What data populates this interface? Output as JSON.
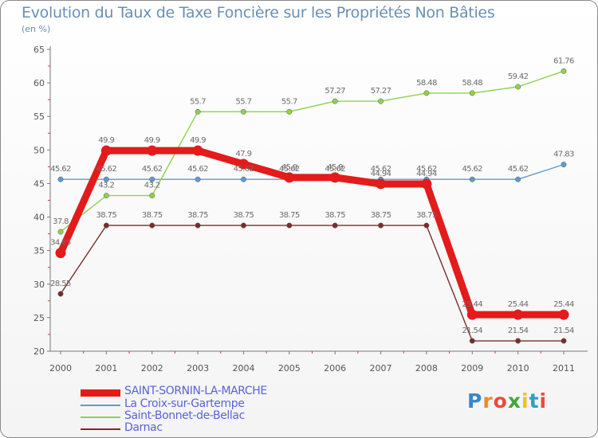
{
  "header": {
    "title": "Evolution du Taux de Taxe Foncière sur les Propriétés Non Bâties",
    "unit": "(en %)"
  },
  "brand": {
    "text": "Proxiti",
    "colors": [
      "#3a87c8",
      "#f08a24",
      "#e94b3c",
      "#3fa83f",
      "#f0c020",
      "#2aa0c8",
      "#e94b3c"
    ]
  },
  "chart_data": {
    "type": "line",
    "title": "Evolution du Taux de Taxe Foncière sur les Propriétés Non Bâties",
    "ylabel": "(en %)",
    "xlabel": "",
    "x": [
      "2000",
      "2001",
      "2002",
      "2003",
      "2004",
      "2005",
      "2006",
      "2007",
      "2008",
      "2009",
      "2010",
      "2011"
    ],
    "ylim": [
      20,
      65
    ],
    "yticks": [
      20,
      25,
      30,
      35,
      40,
      45,
      50,
      55,
      60,
      65
    ],
    "grid": false,
    "legend_position": "bottom-left",
    "series": [
      {
        "name": "SAINT-SORNIN-LA-MARCHE",
        "color": "#e31b1b",
        "values": [
          34.65,
          49.9,
          49.9,
          49.9,
          47.9,
          45.9,
          45.9,
          44.94,
          44.94,
          25.44,
          25.44,
          25.44
        ],
        "labels": [
          "34.65",
          "49.9",
          "49.9",
          "49.9",
          "47.9",
          "45.9",
          "45.9",
          "44.94",
          "44.94",
          "25.44",
          "25.44",
          "25.44"
        ]
      },
      {
        "name": "La Croix-sur-Gartempe",
        "color": "#5b9bd5",
        "values": [
          45.62,
          45.62,
          45.62,
          45.62,
          45.62,
          45.62,
          45.62,
          45.62,
          45.62,
          45.62,
          45.62,
          47.83
        ],
        "labels": [
          "45.62",
          "45.62",
          "45.62",
          "45.62",
          "45.62",
          "45.62",
          "45.62",
          "45.62",
          "45.62",
          "45.62",
          "45.62",
          "47.83"
        ]
      },
      {
        "name": "Saint-Bonnet-de-Bellac",
        "color": "#8fd14f",
        "values": [
          37.8,
          43.2,
          43.2,
          55.7,
          55.7,
          55.7,
          57.27,
          57.27,
          58.48,
          58.48,
          59.42,
          61.76
        ],
        "labels": [
          "37.8",
          "43.2",
          "43.2",
          "55.7",
          "55.7",
          "55.7",
          "57.27",
          "57.27",
          "58.48",
          "58.48",
          "59.42",
          "61.76"
        ]
      },
      {
        "name": "Darnac",
        "color": "#7b2c2c",
        "values": [
          28.55,
          38.75,
          38.75,
          38.75,
          38.75,
          38.75,
          38.75,
          38.75,
          38.75,
          21.54,
          21.54,
          21.54
        ],
        "labels": [
          "28.55",
          "38.75",
          "38.75",
          "38.75",
          "38.75",
          "38.75",
          "38.75",
          "38.75",
          "38.75",
          "21.54",
          "21.54",
          "21.54"
        ]
      }
    ]
  }
}
